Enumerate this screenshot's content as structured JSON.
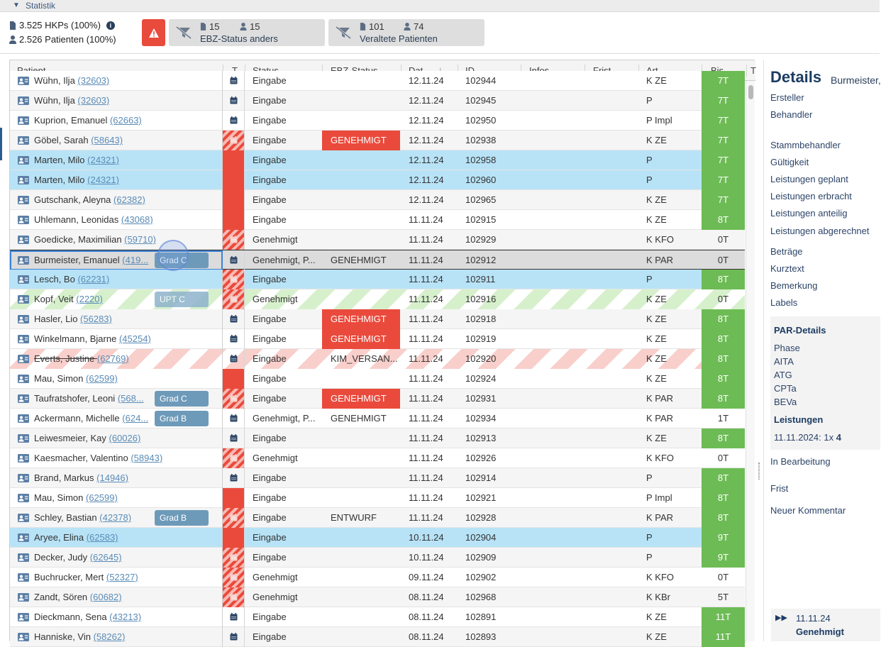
{
  "section": {
    "title": "Statistik"
  },
  "stats": {
    "hkps": "3.525 HKPs (100%)",
    "patients": "2.526 Patienten (100%)"
  },
  "filters": [
    {
      "count_docs": "15",
      "count_people": "15",
      "label": "EBZ-Status anders"
    },
    {
      "count_docs": "101",
      "count_people": "74",
      "label": "Veraltete Patienten"
    }
  ],
  "columns": [
    "Patient",
    "T",
    "Status",
    "EBZ-Status",
    "Dat...",
    "ID",
    "Infos",
    "Frist",
    "Art",
    "Bis ...",
    "T"
  ],
  "rows": [
    {
      "name": "Wühn, Ilja",
      "pid": "(32603)",
      "t": "cal",
      "status": "Eingabe",
      "ebz": "",
      "date": "12.11.24",
      "id": "102944",
      "art": "K ZE",
      "bis": "7T",
      "bg": "plain",
      "partial": true
    },
    {
      "name": "Wühn, Ilja",
      "pid": "(32603)",
      "t": "cal",
      "status": "Eingabe",
      "ebz": "",
      "date": "12.11.24",
      "id": "102945",
      "art": "P",
      "bis": "7T",
      "bg": "alt"
    },
    {
      "name": "Kuprion, Emanuel",
      "pid": "(62663)",
      "t": "cal",
      "status": "Eingabe",
      "ebz": "",
      "date": "12.11.24",
      "id": "102950",
      "art": "P Impl",
      "bis": "7T",
      "bg": "plain"
    },
    {
      "name": "Göbel, Sarah",
      "pid": "(58643)",
      "t": "hatch",
      "status": "Eingabe",
      "ebz": "GENEHMIGT",
      "ebzRed": true,
      "date": "12.11.24",
      "id": "102938",
      "art": "K ZE",
      "bis": "7T",
      "bg": "alt"
    },
    {
      "name": "Marten, Milo",
      "pid": "(24321)",
      "t": "red",
      "status": "Eingabe",
      "ebz": "",
      "date": "12.11.24",
      "id": "102958",
      "art": "P",
      "bis": "7T",
      "bg": "blue"
    },
    {
      "name": "Marten, Milo",
      "pid": "(24321)",
      "t": "red",
      "status": "Eingabe",
      "ebz": "",
      "date": "12.11.24",
      "id": "102960",
      "art": "P",
      "bis": "7T",
      "bg": "blue"
    },
    {
      "name": "Gutschank, Aleyna",
      "pid": "(62382)",
      "t": "red",
      "status": "Eingabe",
      "ebz": "",
      "date": "12.11.24",
      "id": "102965",
      "art": "K ZE",
      "bis": "7T",
      "bg": "alt"
    },
    {
      "name": "Uhlemann, Leonidas",
      "pid": "(43068)",
      "t": "red",
      "status": "Eingabe",
      "ebz": "",
      "date": "11.11.24",
      "id": "102915",
      "art": "K ZE",
      "bis": "8T",
      "bg": "plain"
    },
    {
      "name": "Goedicke, Maximilian",
      "pid": "(59710)",
      "t": "hatch",
      "status": "Genehmigt",
      "ebz": "",
      "date": "11.11.24",
      "id": "102929",
      "art": "K KFO",
      "bis": "0T",
      "bg": "alt",
      "bisPlain": true
    },
    {
      "name": "Burmeister, Emanuel",
      "pid": "(419...",
      "t": "cal",
      "status": "Genehmigt, P...",
      "ebz": "GENEHMIGT",
      "date": "11.11.24",
      "id": "102912",
      "art": "K PAR",
      "bis": "0T",
      "bg": "sel",
      "bisPlain": true,
      "grad": "Grad C"
    },
    {
      "name": "Lesch, Bo",
      "pid": "(62231)",
      "t": "hatch",
      "status": "Eingabe",
      "ebz": "",
      "date": "11.11.24",
      "id": "102911",
      "art": "P",
      "bis": "8T",
      "bg": "blue"
    },
    {
      "name": "Kopf, Veit",
      "pid": "(2220)",
      "t": "hatch",
      "status": "Genehmigt",
      "ebz": "",
      "date": "11.11.24",
      "id": "102916",
      "art": "K ZE",
      "bis": "0T",
      "bg": "green",
      "bisPlain": true,
      "grad": "UPT C",
      "gradLight": true
    },
    {
      "name": "Hasler, Lio",
      "pid": "(56283)",
      "t": "cal",
      "status": "Eingabe",
      "ebz": "GENEHMIGT",
      "ebzRed": true,
      "date": "11.11.24",
      "id": "102918",
      "art": "K ZE",
      "bis": "8T",
      "bg": "alt"
    },
    {
      "name": "Winkelmann, Bjarne",
      "pid": "(45254)",
      "t": "cal",
      "status": "Eingabe",
      "ebz": "GENEHMIGT",
      "ebzRed": true,
      "date": "11.11.24",
      "id": "102919",
      "art": "K ZE",
      "bis": "8T",
      "bg": "plain"
    },
    {
      "name": "Everts, Justine",
      "pid": "(62769)",
      "t": "cal",
      "status": "Eingabe",
      "ebz": "KIM_VERSAN...",
      "date": "11.11.24",
      "id": "102920",
      "art": "K ZE",
      "bis": "8T",
      "bg": "red",
      "strike": true
    },
    {
      "name": "Mau, Simon",
      "pid": "(62599)",
      "t": "red",
      "status": "Eingabe",
      "ebz": "",
      "date": "11.11.24",
      "id": "102924",
      "art": "K ZE",
      "bis": "8T",
      "bg": "plain"
    },
    {
      "name": "Taufratshofer, Leoni",
      "pid": "(568...",
      "t": "hatch",
      "status": "Eingabe",
      "ebz": "GENEHMIGT",
      "ebzRed": true,
      "date": "11.11.24",
      "id": "102931",
      "art": "K PAR",
      "bis": "8T",
      "bg": "alt",
      "grad": "Grad C"
    },
    {
      "name": "Ackermann, Michelle",
      "pid": "(624...",
      "t": "cal",
      "status": "Genehmigt, P...",
      "ebz": "GENEHMIGT",
      "date": "11.11.24",
      "id": "102934",
      "art": "K PAR",
      "bis": "1T",
      "bg": "plain",
      "bisPlain": true,
      "grad": "Grad B"
    },
    {
      "name": "Leiwesmeier, Kay",
      "pid": "(60026)",
      "t": "cal",
      "status": "Eingabe",
      "ebz": "",
      "date": "11.11.24",
      "id": "102913",
      "art": "K ZE",
      "bis": "8T",
      "bg": "alt"
    },
    {
      "name": "Kaesmacher, Valentino",
      "pid": "(58943)",
      "t": "hatch",
      "status": "Genehmigt",
      "ebz": "",
      "date": "11.11.24",
      "id": "102926",
      "art": "K KFO",
      "bis": "0T",
      "bg": "plain",
      "bisPlain": true
    },
    {
      "name": "Brand, Markus",
      "pid": "(14946)",
      "t": "cal",
      "status": "Eingabe",
      "ebz": "",
      "date": "11.11.24",
      "id": "102914",
      "art": "P",
      "bis": "8T",
      "bg": "alt"
    },
    {
      "name": "Mau, Simon",
      "pid": "(62599)",
      "t": "red",
      "status": "Eingabe",
      "ebz": "",
      "date": "11.11.24",
      "id": "102921",
      "art": "P Impl",
      "bis": "8T",
      "bg": "plain"
    },
    {
      "name": "Schley, Bastian",
      "pid": "(42378)",
      "t": "hatch",
      "status": "Eingabe",
      "ebz": "ENTWURF",
      "date": "11.11.24",
      "id": "102928",
      "art": "K PAR",
      "bis": "8T",
      "bg": "alt",
      "grad": "Grad B"
    },
    {
      "name": "Aryee, Elina",
      "pid": "(62583)",
      "t": "red",
      "status": "Eingabe",
      "ebz": "",
      "date": "10.11.24",
      "id": "102904",
      "art": "P",
      "bis": "9T",
      "bg": "blue"
    },
    {
      "name": "Decker, Judy",
      "pid": "(62645)",
      "t": "hatch",
      "status": "Eingabe",
      "ebz": "",
      "date": "10.11.24",
      "id": "102909",
      "art": "P",
      "bis": "9T",
      "bg": "alt"
    },
    {
      "name": "Buchrucker, Mert",
      "pid": "(52327)",
      "t": "hatch",
      "status": "Genehmigt",
      "ebz": "",
      "date": "09.11.24",
      "id": "102902",
      "art": "K KFO",
      "bis": "0T",
      "bg": "plain",
      "bisPlain": true
    },
    {
      "name": "Zandt, Sören",
      "pid": "(60682)",
      "t": "hatch",
      "status": "Genehmigt",
      "ebz": "",
      "date": "08.11.24",
      "id": "102968",
      "art": "K KBr",
      "bis": "5T",
      "bg": "alt",
      "bisPlain": true
    },
    {
      "name": "Dieckmann, Sena",
      "pid": "(43213)",
      "t": "cal",
      "status": "Eingabe",
      "ebz": "",
      "date": "08.11.24",
      "id": "102891",
      "art": "K ZE",
      "bis": "11T",
      "bg": "plain"
    },
    {
      "name": "Hanniske, Vin",
      "pid": "(58262)",
      "t": "cal",
      "status": "Eingabe",
      "ebz": "",
      "date": "08.11.24",
      "id": "102893",
      "art": "K ZE",
      "bis": "11T",
      "bg": "alt"
    }
  ],
  "details": {
    "title": "Details",
    "subtitle": "Burmeister,",
    "links_top": [
      "Ersteller",
      "Behandler"
    ],
    "links_mid": [
      "Stammbehandler",
      "Gültigkeit",
      "Leistungen geplant",
      "Leistungen erbracht",
      "Leistungen anteilig",
      "Leistungen abgerechnet"
    ],
    "links_low": [
      "Beträge",
      "Kurztext",
      "Bemerkung",
      "Labels"
    ],
    "par": {
      "title": "PAR-Details",
      "items": [
        "Phase",
        "AITA",
        "ATG",
        "CPTa",
        "BEVa"
      ],
      "leistungen_title": "Leistungen",
      "leistungen_date": "11.11.2024:",
      "leistungen_qty": "1x",
      "leistungen_val": "4"
    },
    "links_bottom": [
      "In Bearbeitung",
      "Frist",
      "Neuer Kommentar"
    ],
    "card": {
      "date": "11.11.24",
      "status": "Genehmigt"
    }
  },
  "colors": {
    "accent_red": "#ea4a3c",
    "bis_green": "#6dbb55",
    "row_blue": "#b8e3f7",
    "title_navy": "#1d3c63"
  }
}
